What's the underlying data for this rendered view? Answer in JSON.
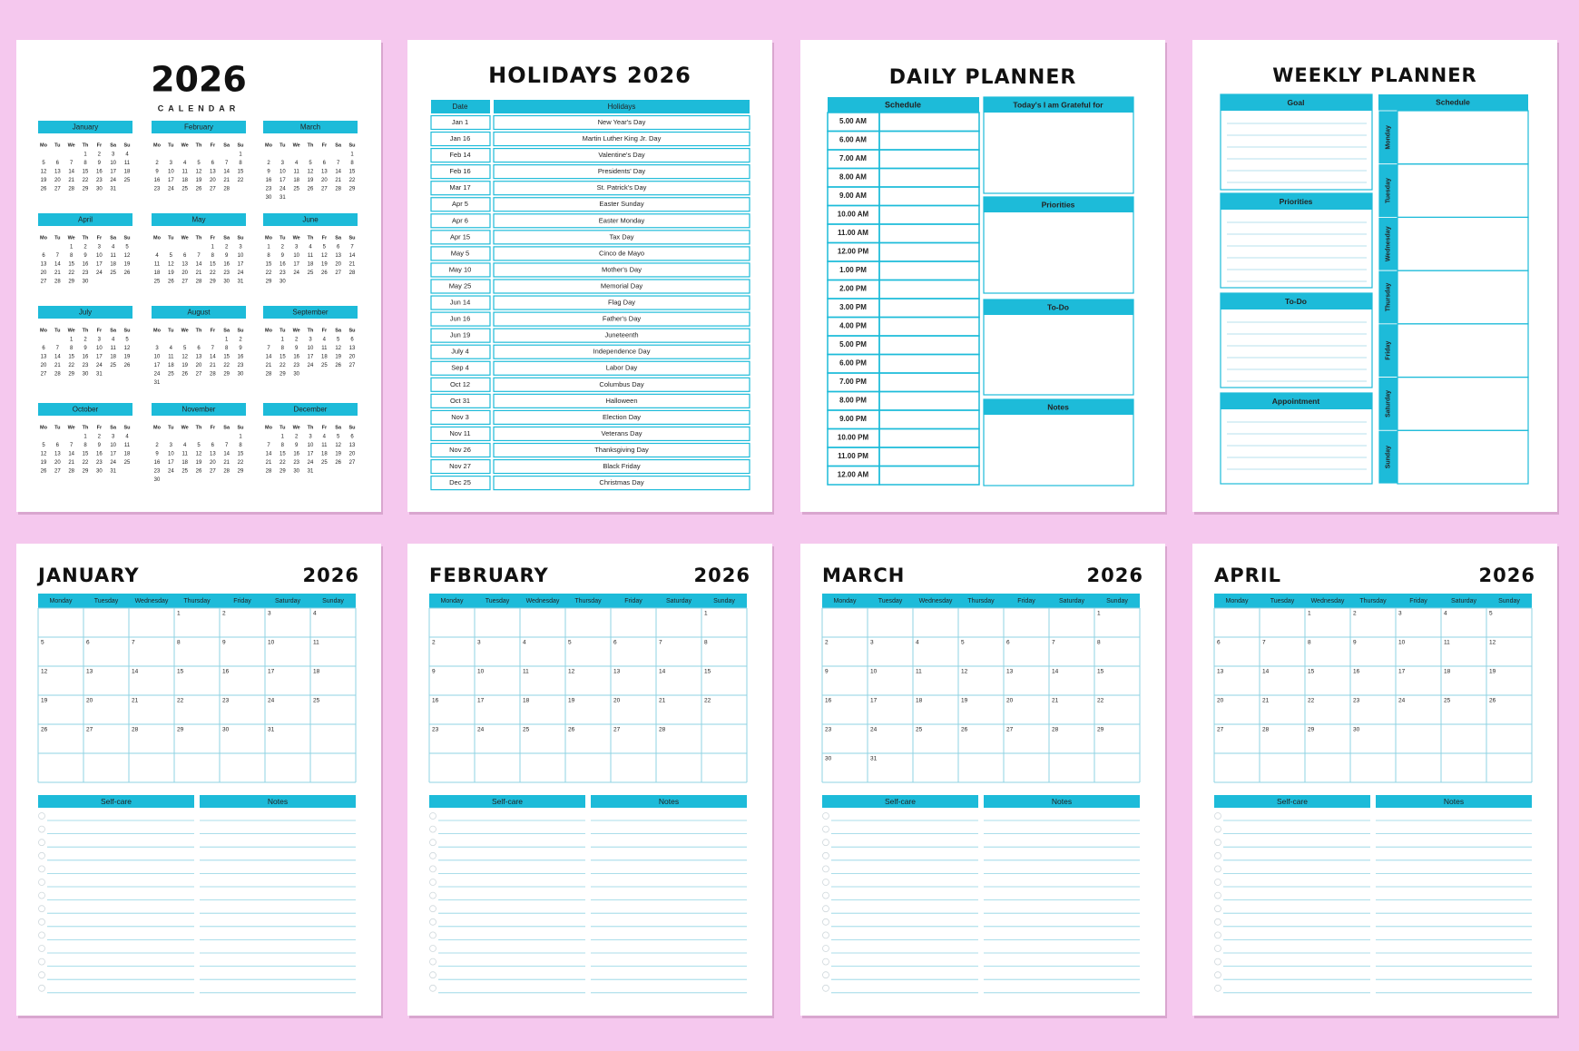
{
  "year_calendar": {
    "title": "2026",
    "subtitle": "CALENDAR",
    "weekdays": [
      "Mo",
      "Tu",
      "We",
      "Th",
      "Fr",
      "Sa",
      "Su"
    ],
    "months": [
      {
        "name": "January",
        "days": [
          null,
          null,
          null,
          1,
          2,
          3,
          4,
          5,
          6,
          7,
          8,
          9,
          10,
          11,
          12,
          13,
          14,
          15,
          16,
          17,
          18,
          19,
          20,
          21,
          22,
          23,
          24,
          25,
          26,
          27,
          28,
          29,
          30,
          31
        ]
      },
      {
        "name": "February",
        "days": [
          null,
          null,
          null,
          null,
          null,
          null,
          1,
          2,
          3,
          4,
          5,
          6,
          7,
          8,
          9,
          10,
          11,
          12,
          13,
          14,
          15,
          16,
          17,
          18,
          19,
          20,
          21,
          22,
          23,
          24,
          25,
          26,
          27,
          28
        ]
      },
      {
        "name": "March",
        "days": [
          null,
          null,
          null,
          null,
          null,
          null,
          1,
          2,
          3,
          4,
          5,
          6,
          7,
          8,
          9,
          10,
          11,
          12,
          13,
          14,
          15,
          16,
          17,
          18,
          19,
          20,
          21,
          22,
          23,
          24,
          25,
          26,
          27,
          28,
          29,
          30,
          31
        ]
      },
      {
        "name": "April",
        "days": [
          null,
          null,
          1,
          2,
          3,
          4,
          5,
          6,
          7,
          8,
          9,
          10,
          11,
          12,
          13,
          14,
          15,
          16,
          17,
          18,
          19,
          20,
          21,
          22,
          23,
          24,
          25,
          26,
          27,
          28,
          29,
          30
        ]
      },
      {
        "name": "May",
        "days": [
          null,
          null,
          null,
          null,
          1,
          2,
          3,
          4,
          5,
          6,
          7,
          8,
          9,
          10,
          11,
          12,
          13,
          14,
          15,
          16,
          17,
          18,
          19,
          20,
          21,
          22,
          23,
          24,
          25,
          26,
          27,
          28,
          29,
          30,
          31
        ]
      },
      {
        "name": "June",
        "days": [
          1,
          2,
          3,
          4,
          5,
          6,
          7,
          8,
          9,
          10,
          11,
          12,
          13,
          14,
          15,
          16,
          17,
          18,
          19,
          20,
          21,
          22,
          23,
          24,
          25,
          26,
          27,
          28,
          29,
          30
        ]
      },
      {
        "name": "July",
        "days": [
          null,
          null,
          1,
          2,
          3,
          4,
          5,
          6,
          7,
          8,
          9,
          10,
          11,
          12,
          13,
          14,
          15,
          16,
          17,
          18,
          19,
          20,
          21,
          22,
          23,
          24,
          25,
          26,
          27,
          28,
          29,
          30,
          31
        ]
      },
      {
        "name": "August",
        "days": [
          null,
          null,
          null,
          null,
          null,
          1,
          2,
          3,
          4,
          5,
          6,
          7,
          8,
          9,
          10,
          11,
          12,
          13,
          14,
          15,
          16,
          17,
          18,
          19,
          20,
          21,
          22,
          23,
          24,
          25,
          26,
          27,
          28,
          29,
          30,
          31
        ]
      },
      {
        "name": "September",
        "days": [
          null,
          1,
          2,
          3,
          4,
          5,
          6,
          7,
          8,
          9,
          10,
          11,
          12,
          13,
          14,
          15,
          16,
          17,
          18,
          19,
          20,
          21,
          22,
          23,
          24,
          25,
          26,
          27,
          28,
          29,
          30
        ]
      },
      {
        "name": "October",
        "days": [
          null,
          null,
          null,
          1,
          2,
          3,
          4,
          5,
          6,
          7,
          8,
          9,
          10,
          11,
          12,
          13,
          14,
          15,
          16,
          17,
          18,
          19,
          20,
          21,
          22,
          23,
          24,
          25,
          26,
          27,
          28,
          29,
          30,
          31
        ]
      },
      {
        "name": "November",
        "days": [
          null,
          null,
          null,
          null,
          null,
          null,
          1,
          2,
          3,
          4,
          5,
          6,
          7,
          8,
          9,
          10,
          11,
          12,
          13,
          14,
          15,
          16,
          17,
          18,
          19,
          20,
          21,
          22,
          23,
          24,
          25,
          26,
          27,
          28,
          29,
          30
        ]
      },
      {
        "name": "December",
        "days": [
          null,
          1,
          2,
          3,
          4,
          5,
          6,
          7,
          8,
          9,
          10,
          11,
          12,
          13,
          14,
          15,
          16,
          17,
          18,
          19,
          20,
          21,
          22,
          23,
          24,
          25,
          26,
          27,
          28,
          29,
          30,
          31
        ]
      }
    ]
  },
  "holidays": {
    "title": "HOLIDAYS 2026",
    "headers": [
      "Date",
      "Holidays"
    ],
    "rows": [
      [
        "Jan 1",
        "New Year's Day"
      ],
      [
        "Jan 16",
        "Martin Luther King Jr. Day"
      ],
      [
        "Feb 14",
        "Valentine's Day"
      ],
      [
        "Feb 16",
        "Presidents' Day"
      ],
      [
        "Mar 17",
        "St. Patrick's Day"
      ],
      [
        "Apr 5",
        "Easter Sunday"
      ],
      [
        "Apr 6",
        "Easter Monday"
      ],
      [
        "Apr 15",
        "Tax Day"
      ],
      [
        "May 5",
        "Cinco de Mayo"
      ],
      [
        "May 10",
        "Mother's Day"
      ],
      [
        "May 25",
        "Memorial Day"
      ],
      [
        "Jun 14",
        "Flag Day"
      ],
      [
        "Jun 16",
        "Father's Day"
      ],
      [
        "Jun 19",
        "Juneteenth"
      ],
      [
        "July 4",
        "Independence Day"
      ],
      [
        "Sep 4",
        "Labor Day"
      ],
      [
        "Oct 12",
        "Columbus Day"
      ],
      [
        "Oct 31",
        "Halloween"
      ],
      [
        "Nov 3",
        "Election Day"
      ],
      [
        "Nov 11",
        "Veterans Day"
      ],
      [
        "Nov 26",
        "Thanksgiving Day"
      ],
      [
        "Nov 27",
        "Black Friday"
      ],
      [
        "Dec 25",
        "Christmas Day"
      ]
    ]
  },
  "daily_planner": {
    "title": "DAILY PLANNER",
    "schedule": "Schedule",
    "times": [
      "5.00 AM",
      "6.00 AM",
      "7.00 AM",
      "8.00 AM",
      "9.00 AM",
      "10.00 AM",
      "11.00 AM",
      "12.00 PM",
      "1.00 PM",
      "2.00 PM",
      "3.00 PM",
      "4.00 PM",
      "5.00 PM",
      "6.00 PM",
      "7.00 PM",
      "8.00 PM",
      "9.00 PM",
      "10.00 PM",
      "11.00 PM",
      "12.00 AM"
    ],
    "sections": [
      "Today's I am Grateful for",
      "Priorities",
      "To-Do",
      "Notes"
    ]
  },
  "weekly_planner": {
    "title": "WEEKLY PLANNER",
    "sections": [
      "Goal",
      "Priorities",
      "To-Do",
      "Appointment"
    ],
    "schedule": "Schedule",
    "days": [
      "Monday",
      "Tuesday",
      "Wednesday",
      "Thursday",
      "Friday",
      "Saturday",
      "Sunday"
    ]
  },
  "monthly_pages": {
    "weekdays": [
      "Monday",
      "Tuesday",
      "Wednesday",
      "Thursday",
      "Friday",
      "Saturday",
      "Sunday"
    ],
    "self_care": "Self-care",
    "notes": "Notes",
    "titles": [
      "JANUARY",
      "FEBRUARY",
      "MARCH",
      "APRIL"
    ]
  }
}
